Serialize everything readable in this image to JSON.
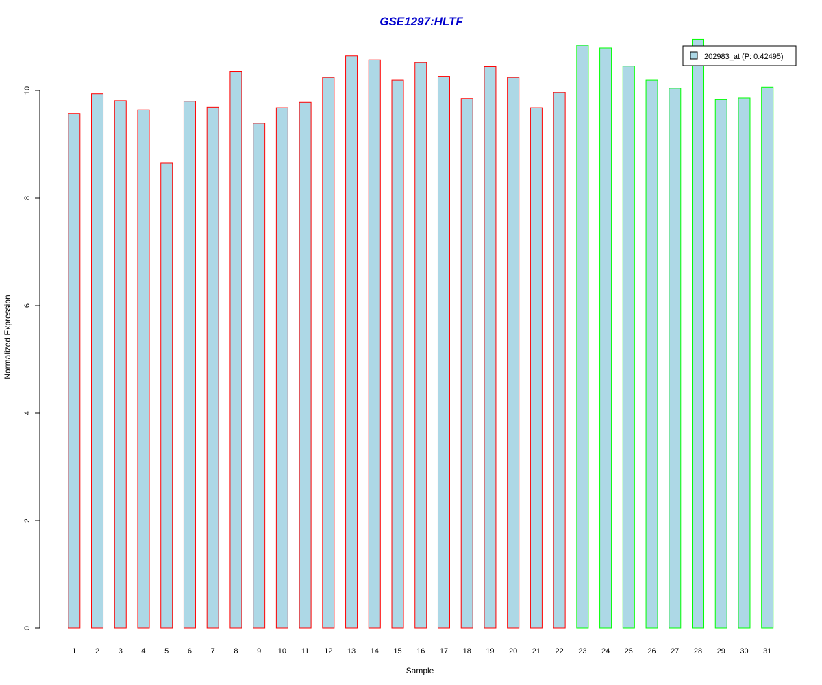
{
  "chart_data": {
    "type": "bar",
    "title": "GSE1297:HLTF",
    "xlabel": "Sample",
    "ylabel": "Normalized Expression",
    "categories": [
      "1",
      "2",
      "3",
      "4",
      "5",
      "6",
      "7",
      "8",
      "9",
      "10",
      "11",
      "12",
      "13",
      "14",
      "15",
      "16",
      "17",
      "18",
      "19",
      "20",
      "21",
      "22",
      "23",
      "24",
      "25",
      "26",
      "27",
      "28",
      "29",
      "30",
      "31"
    ],
    "values": [
      9.57,
      9.94,
      9.81,
      9.64,
      8.65,
      9.8,
      9.69,
      10.35,
      9.39,
      9.68,
      9.78,
      10.24,
      10.64,
      10.57,
      10.19,
      10.52,
      10.26,
      9.85,
      10.44,
      10.24,
      9.68,
      9.96,
      10.84,
      10.79,
      10.45,
      10.19,
      10.04,
      10.95,
      9.83,
      9.86,
      10.06
    ],
    "groups": [
      "red",
      "red",
      "red",
      "red",
      "red",
      "red",
      "red",
      "red",
      "red",
      "red",
      "red",
      "red",
      "red",
      "red",
      "red",
      "red",
      "red",
      "red",
      "red",
      "red",
      "red",
      "red",
      "green",
      "green",
      "green",
      "green",
      "green",
      "green",
      "green",
      "green",
      "green"
    ],
    "yticks": [
      0,
      2,
      4,
      6,
      8,
      10
    ],
    "ylim": [
      0,
      11
    ],
    "grid": false,
    "legend": {
      "placement": "top-right",
      "entries": [
        {
          "label": "202983_at (P: 0.42495)",
          "fill": "#add8e6"
        }
      ]
    },
    "colors": {
      "bar_fill": "#add8e6",
      "group_border": {
        "red": "#ff0000",
        "green": "#00ff00"
      },
      "title": "#0000cc"
    }
  }
}
